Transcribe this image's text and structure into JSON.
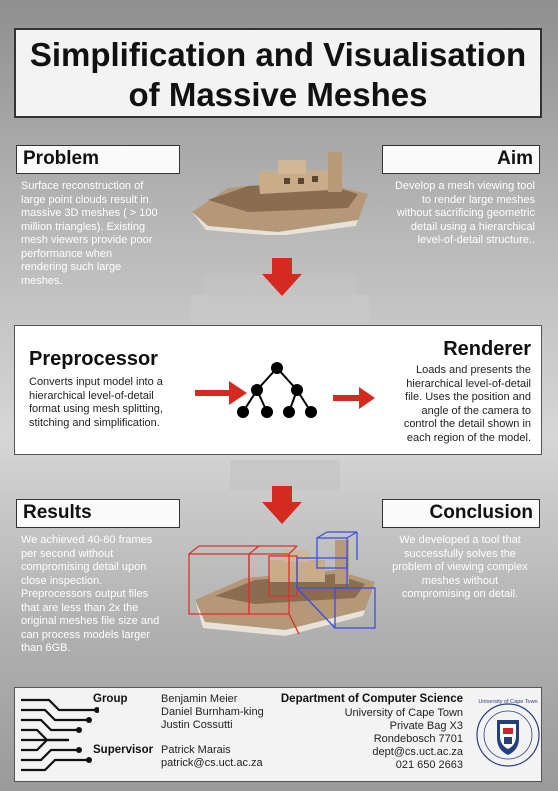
{
  "title": {
    "line1": "Simplification and Visualisation",
    "line2": "of Massive Meshes"
  },
  "problem": {
    "heading": "Problem",
    "lines": [
      "Surface reconstruction of",
      "large point clouds result in",
      "massive 3D meshes ( > 100",
      "million triangles). Existing",
      "mesh viewers provide poor",
      "performance when",
      "rendering such large",
      "meshes."
    ]
  },
  "aim": {
    "heading": "Aim",
    "lines": [
      "Develop a mesh viewing tool",
      "to render large meshes",
      "without sacrificing geometric",
      "detail using a hierarchical",
      "level-of-detail structure.."
    ]
  },
  "preprocessor": {
    "heading": "Preprocessor",
    "lines": [
      "Converts input model into a",
      "hierarchical level-of-detail",
      "format using mesh splitting,",
      "stitching and simplification."
    ]
  },
  "renderer": {
    "heading": "Renderer",
    "lines": [
      "Loads and presents the",
      "hierarchical level-of-detail",
      "file. Uses the position and",
      "angle of the camera to",
      "control the detail shown in",
      "each region of the model."
    ]
  },
  "results": {
    "heading": "Results",
    "lines": [
      "We achieved 40-60 frames",
      "per second without",
      "compromising detail upon",
      "close inspection.",
      "Preprocessors output files",
      "that are less than 2x the",
      "original meshes file size and",
      "can process models larger",
      "than 6GB."
    ]
  },
  "conclusion": {
    "heading": "Conclusion",
    "lines": [
      "We developed a tool that",
      "successfully solves the",
      "problem of viewing complex",
      "meshes without",
      "compromising on detail."
    ]
  },
  "footer": {
    "group_label": "Group",
    "members": [
      "Benjamin Meier",
      "Daniel Burnham-king",
      "Justin Cossutti"
    ],
    "supervisor_label": "Supervisor",
    "supervisor_name": "Patrick Marais",
    "supervisor_email": "patrick@cs.uct.ac.za",
    "dept_title": "Department of Computer Science",
    "address": [
      "University of Cape Town",
      "Private Bag X3",
      "Rondebosch 7701",
      "dept@cs.uct.ac.za",
      "021 650 2663"
    ],
    "seal_text": "University of Cape Town"
  },
  "colors": {
    "arrow": "#d42b20",
    "box_red": "#e0302a",
    "box_blue": "#3a4fe0"
  },
  "icons": [
    "down-arrow-icon",
    "right-arrow-icon",
    "tree-diagram-icon",
    "uct-seal-icon",
    "circuit-logo-icon"
  ]
}
